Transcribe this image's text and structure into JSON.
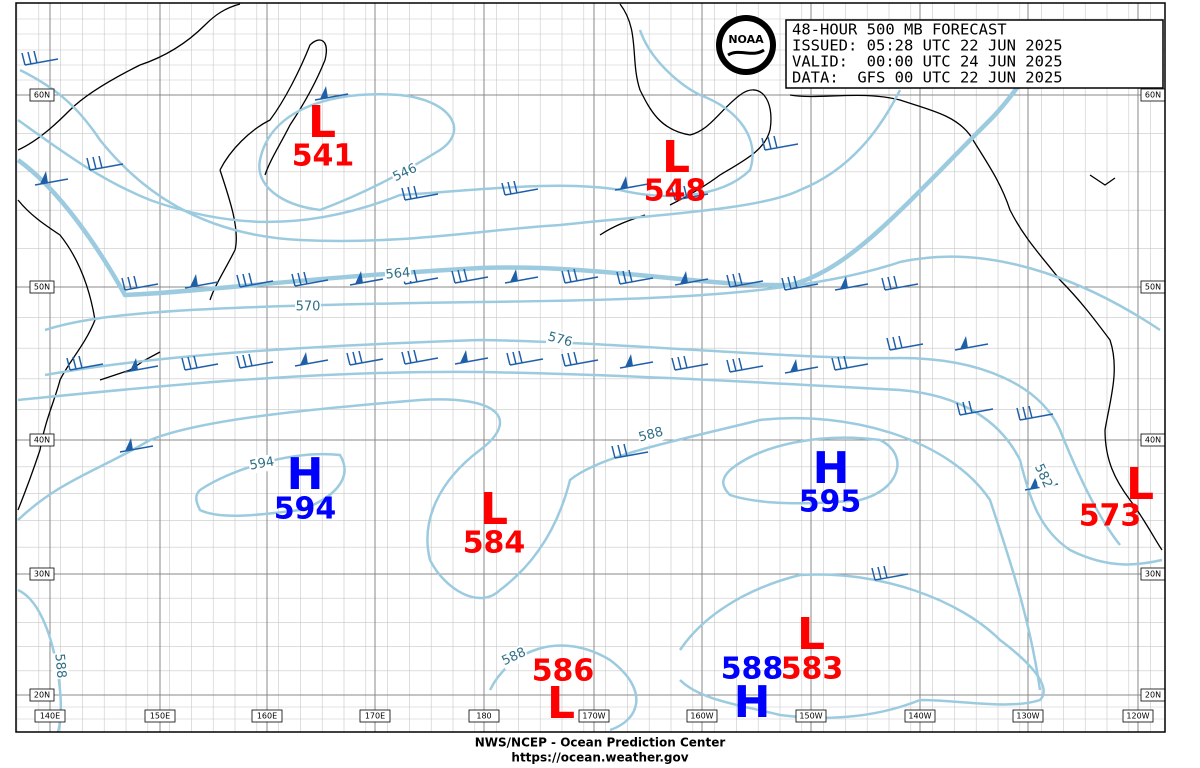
{
  "header": {
    "title": "48-HOUR 500 MB FORECAST",
    "issued": "ISSUED: 05:28 UTC 22 JUN 2025",
    "valid": "VALID:  00:00 UTC 24 JUN 2025",
    "data": "DATA:  GFS 00 UTC 22 JUN 2025"
  },
  "logo": "NOAA",
  "centers": [
    {
      "symbol": "L",
      "value": 541
    },
    {
      "symbol": "L",
      "value": 548
    },
    {
      "symbol": "H",
      "value": 594
    },
    {
      "symbol": "L",
      "value": 584
    },
    {
      "symbol": "H",
      "value": 595
    },
    {
      "symbol": "L",
      "value": 573
    },
    {
      "symbol": "L",
      "value": 586
    },
    {
      "symbol": "H",
      "value": 588
    },
    {
      "symbol": "L",
      "value": 583
    }
  ],
  "contour_labels": [
    546,
    564,
    570,
    576,
    588,
    594,
    582,
    588,
    588
  ],
  "lat_labels": [
    "60N",
    "50N",
    "40N",
    "30N",
    "20N"
  ],
  "lon_labels": [
    "140E",
    "150E",
    "160E",
    "170E",
    "180",
    "170W",
    "160W",
    "150W",
    "140W",
    "130W",
    "120W"
  ],
  "footer": {
    "agency": "NWS/NCEP - Ocean Prediction Center",
    "url": "https://ocean.weather.gov"
  }
}
